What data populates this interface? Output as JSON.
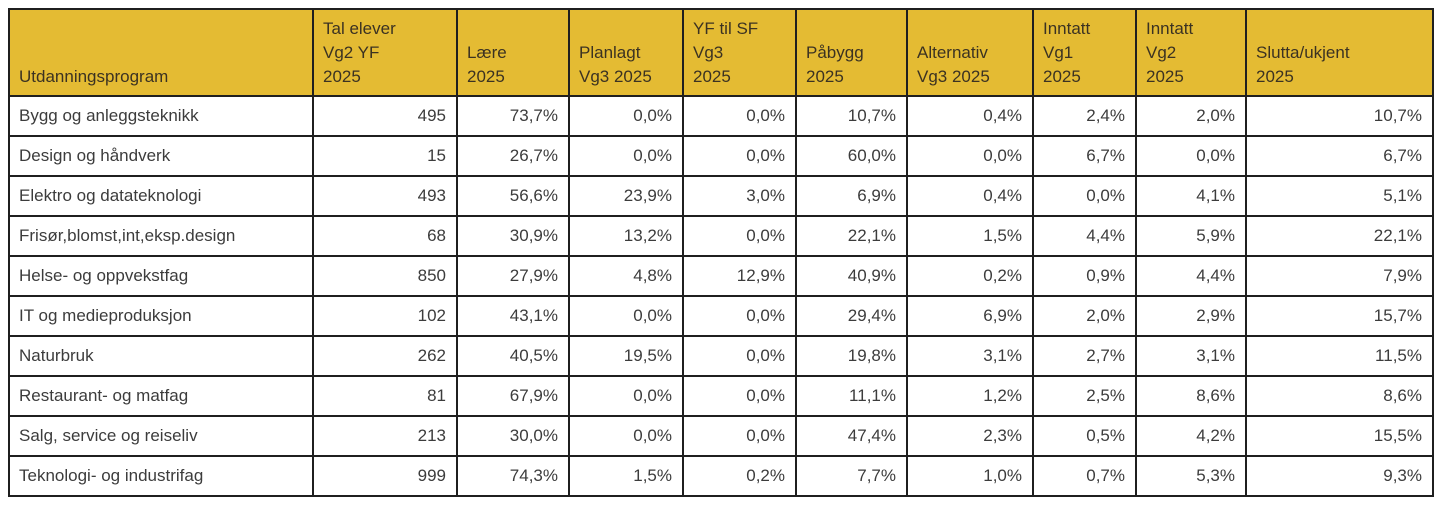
{
  "chart_data": {
    "type": "table",
    "title": "",
    "columns": [
      "Utdanningsprogram",
      "Tal elever Vg2 YF 2025",
      "Lære 2025",
      "Planlagt Vg3 2025",
      "YF til SF Vg3 2025",
      "Påbygg 2025",
      "Alternativ Vg3 2025",
      "Inntatt Vg1 2025",
      "Inntatt Vg2 2025",
      "Slutta/ukjent 2025"
    ],
    "rows": [
      [
        "Bygg og anleggsteknikk",
        "495",
        "73,7%",
        "0,0%",
        "0,0%",
        "10,7%",
        "0,4%",
        "2,4%",
        "2,0%",
        "10,7%"
      ],
      [
        "Design og håndverk",
        "15",
        "26,7%",
        "0,0%",
        "0,0%",
        "60,0%",
        "0,0%",
        "6,7%",
        "0,0%",
        "6,7%"
      ],
      [
        "Elektro og datateknologi",
        "493",
        "56,6%",
        "23,9%",
        "3,0%",
        "6,9%",
        "0,4%",
        "0,0%",
        "4,1%",
        "5,1%"
      ],
      [
        "Frisør,blomst,int,eksp.design",
        "68",
        "30,9%",
        "13,2%",
        "0,0%",
        "22,1%",
        "1,5%",
        "4,4%",
        "5,9%",
        "22,1%"
      ],
      [
        "Helse- og oppvekstfag",
        "850",
        "27,9%",
        "4,8%",
        "12,9%",
        "40,9%",
        "0,2%",
        "0,9%",
        "4,4%",
        "7,9%"
      ],
      [
        "IT og medieproduksjon",
        "102",
        "43,1%",
        "0,0%",
        "0,0%",
        "29,4%",
        "6,9%",
        "2,0%",
        "2,9%",
        "15,7%"
      ],
      [
        "Naturbruk",
        "262",
        "40,5%",
        "19,5%",
        "0,0%",
        "19,8%",
        "3,1%",
        "2,7%",
        "3,1%",
        "11,5%"
      ],
      [
        "Restaurant- og matfag",
        "81",
        "67,9%",
        "0,0%",
        "0,0%",
        "11,1%",
        "1,2%",
        "2,5%",
        "8,6%",
        "8,6%"
      ],
      [
        "Salg, service og reiseliv",
        "213",
        "30,0%",
        "0,0%",
        "0,0%",
        "47,4%",
        "2,3%",
        "0,5%",
        "4,2%",
        "15,5%"
      ],
      [
        "Teknologi- og industrifag",
        "999",
        "74,3%",
        "1,5%",
        "0,2%",
        "7,7%",
        "1,0%",
        "0,7%",
        "5,3%",
        "9,3%"
      ]
    ]
  },
  "header_display": [
    "Utdanningsprogram",
    "Tal elever\nVg2 YF\n2025",
    "Lære\n2025",
    "Planlagt\nVg3 2025",
    "YF til SF\nVg3\n2025",
    "Påbygg\n2025",
    "Alternativ\nVg3 2025",
    "Inntatt\nVg1\n2025",
    "Inntatt\nVg2\n2025",
    "Slutta/ukjent\n2025"
  ],
  "column_keys": [
    "utdanningsprogram",
    "tal-elever-vg2-yf-2025",
    "laere-2025",
    "planlagt-vg3-2025",
    "yf-til-sf-vg3-2025",
    "pabygg-2025",
    "alternativ-vg3-2025",
    "inntatt-vg1-2025",
    "inntatt-vg2-2025",
    "slutta-ukjent-2025"
  ],
  "colors": {
    "header_bg": "#E4BB33",
    "border": "#1F1F1F",
    "header_text": "#3B3222",
    "body_text": "#3C3C3C",
    "row_bg": "#FFFFFF"
  }
}
